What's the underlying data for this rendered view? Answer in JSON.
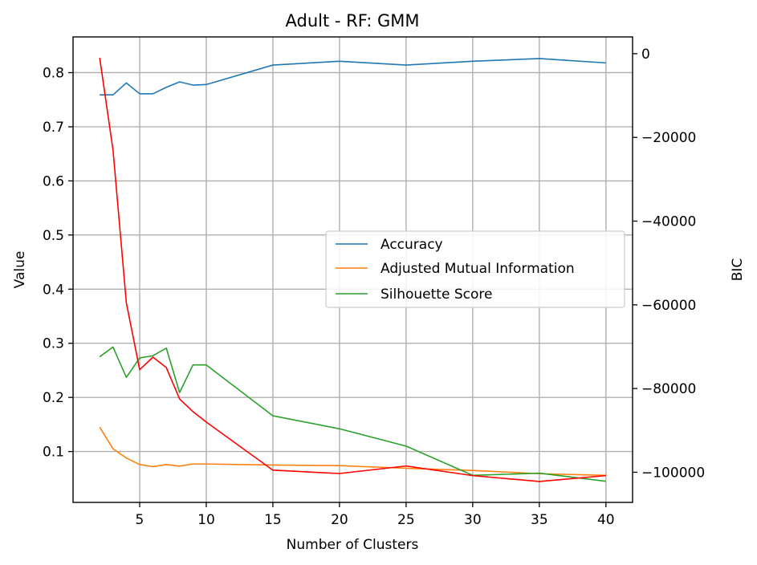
{
  "chart_data": {
    "type": "line",
    "title": "Adult - RF: GMM",
    "xlabel": "Number of Clusters",
    "ylabel": "Value",
    "y2label": "BIC",
    "xlim": [
      0,
      42
    ],
    "ylim": [
      0.006,
      0.866
    ],
    "y2lim": [
      -107200,
      4000
    ],
    "xticks": [
      5,
      10,
      15,
      20,
      25,
      30,
      35,
      40
    ],
    "yticks": [
      0.1,
      0.2,
      0.3,
      0.4,
      0.5,
      0.6,
      0.7,
      0.8
    ],
    "y2ticks": [
      0,
      -20000,
      -40000,
      -60000,
      -80000,
      -100000
    ],
    "y2tick_labels": [
      "0",
      "−20000",
      "−40000",
      "−60000",
      "−80000",
      "−100000"
    ],
    "grid": true,
    "legend_position": "center-right",
    "x": [
      2,
      3,
      4,
      5,
      6,
      7,
      8,
      9,
      10,
      15,
      20,
      25,
      30,
      35,
      40
    ],
    "series": [
      {
        "name": "Accuracy",
        "axis": "left",
        "color": "#1f77b4",
        "in_legend": true,
        "values": [
          0.759,
          0.759,
          0.781,
          0.761,
          0.761,
          0.773,
          0.783,
          0.777,
          0.778,
          0.814,
          0.821,
          0.814,
          0.821,
          0.826,
          0.818
        ]
      },
      {
        "name": "Adjusted Mutual Information",
        "axis": "left",
        "color": "#ff7f0e",
        "in_legend": true,
        "values": [
          0.145,
          0.105,
          0.088,
          0.076,
          0.072,
          0.076,
          0.073,
          0.077,
          0.077,
          0.075,
          0.074,
          0.069,
          0.065,
          0.059,
          0.056
        ]
      },
      {
        "name": "Silhouette Score",
        "axis": "left",
        "color": "#2ca02c",
        "in_legend": true,
        "values": [
          0.275,
          0.293,
          0.237,
          0.273,
          0.277,
          0.291,
          0.209,
          0.26,
          0.26,
          0.166,
          0.142,
          0.11,
          0.056,
          0.06,
          0.045
        ]
      },
      {
        "name": "",
        "axis": "right",
        "color": "#ff0000",
        "in_legend": false,
        "values": [
          -1000,
          -23000,
          -59500,
          -75500,
          -72500,
          -75000,
          -82500,
          -85500,
          -88000,
          -99500,
          -100300,
          -98500,
          -100800,
          -102200,
          -100800
        ]
      }
    ]
  }
}
